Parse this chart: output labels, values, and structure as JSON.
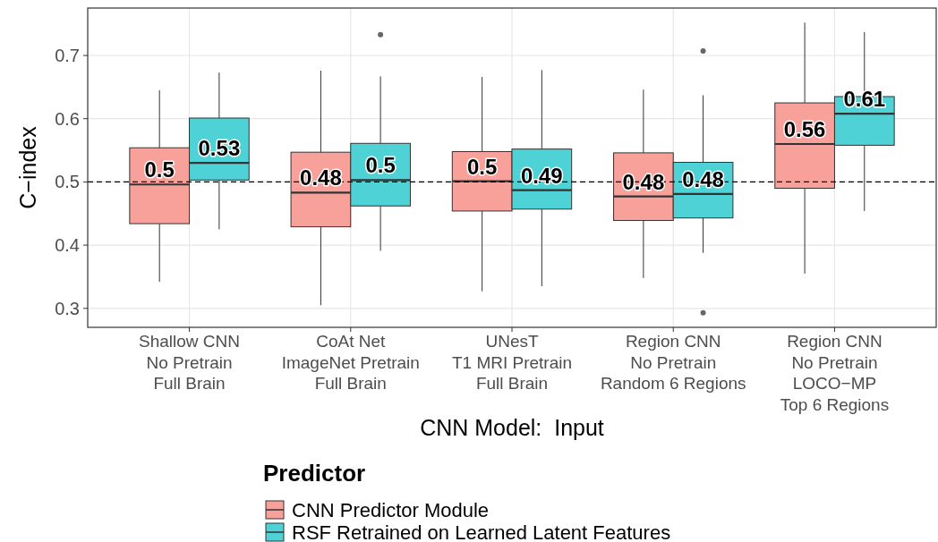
{
  "chart_data": {
    "type": "box",
    "xlabel": "CNN Model:  Input",
    "ylabel": "C−index",
    "legend_title": "Predictor",
    "categories": [
      "Shallow CNN\nNo Pretrain\nFull Brain",
      "CoAt Net\nImageNet Pretrain\nFull Brain",
      "UNesT\nT1 MRI Pretrain\nFull Brain",
      "Region CNN\nNo Pretrain\nRandom 6 Regions",
      "Region CNN\nNo Pretrain\nLOCO−MP\nTop 6 Regions"
    ],
    "ylim": [
      0.27,
      0.775
    ],
    "yticks": [
      0.3,
      0.4,
      0.5,
      0.6,
      0.7
    ],
    "grid": true,
    "legend": "bottom",
    "ref_lines": [
      {
        "axis": "y",
        "value": 0.5,
        "line_style": "dashed",
        "color": "#000000"
      }
    ],
    "series": [
      {
        "name": "CNN Predictor Module",
        "color": "#f8a09a",
        "value_labels": [
          "0.5",
          "0.48",
          "0.5",
          "0.48",
          "0.56"
        ],
        "boxes": [
          {
            "low": 0.342,
            "q1": 0.434,
            "median": 0.496,
            "q3": 0.554,
            "high": 0.645
          },
          {
            "low": 0.305,
            "q1": 0.429,
            "median": 0.483,
            "q3": 0.547,
            "high": 0.676
          },
          {
            "low": 0.327,
            "q1": 0.454,
            "median": 0.501,
            "q3": 0.548,
            "high": 0.666
          },
          {
            "low": 0.348,
            "q1": 0.439,
            "median": 0.477,
            "q3": 0.546,
            "high": 0.646
          },
          {
            "low": 0.355,
            "q1": 0.49,
            "median": 0.56,
            "q3": 0.625,
            "high": 0.752
          }
        ]
      },
      {
        "name": "RSF Retrained on Learned Latent Features",
        "color": "#4fd2d6",
        "value_labels": [
          "0.53",
          "0.5",
          "0.49",
          "0.48",
          "0.61"
        ],
        "boxes": [
          {
            "low": 0.425,
            "q1": 0.503,
            "median": 0.53,
            "q3": 0.601,
            "high": 0.673
          },
          {
            "low": 0.391,
            "q1": 0.462,
            "median": 0.503,
            "q3": 0.561,
            "high": 0.667,
            "outliers": [
              0.733
            ]
          },
          {
            "low": 0.335,
            "q1": 0.457,
            "median": 0.487,
            "q3": 0.552,
            "high": 0.677
          },
          {
            "low": 0.388,
            "q1": 0.443,
            "median": 0.481,
            "q3": 0.531,
            "high": 0.637,
            "outliers": [
              0.707,
              0.293
            ]
          },
          {
            "low": 0.454,
            "q1": 0.558,
            "median": 0.608,
            "q3": 0.635,
            "high": 0.737
          }
        ]
      }
    ]
  }
}
